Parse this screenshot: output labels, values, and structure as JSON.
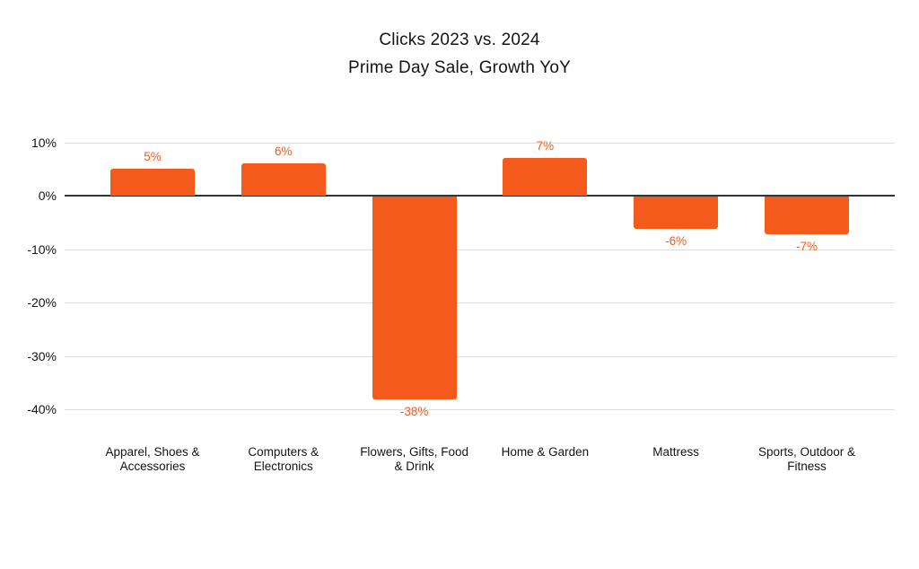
{
  "title": {
    "line1": "Clicks 2023 vs. 2024",
    "line2": "Prime Day Sale, Growth YoY"
  },
  "chart_data": {
    "type": "bar",
    "title": "Clicks 2023 vs. 2024",
    "subtitle": "Prime Day Sale, Growth YoY",
    "categories": [
      "Apparel, Shoes &\nAccessories",
      "Computers &\nElectronics",
      "Flowers, Gifts, Food\n& Drink",
      "Home & Garden",
      "Mattress",
      "Sports, Outdoor &\nFitness"
    ],
    "values": [
      5,
      6,
      -38,
      7,
      -6,
      -7
    ],
    "value_labels": [
      "5%",
      "6%",
      "-38%",
      "7%",
      "-6%",
      "-7%"
    ],
    "xlabel": "",
    "ylabel": "",
    "ylim": [
      -40,
      10
    ],
    "y_ticks": [
      10,
      0,
      -10,
      -20,
      -30,
      -40
    ],
    "y_tick_labels": [
      "10%",
      "0%",
      "-10%",
      "-20%",
      "-30%",
      "-40%"
    ],
    "grid": "on",
    "legend": "none",
    "bar_color": "#f45a1c",
    "value_label_color": "#f45a1c",
    "grid_color": "#dedede",
    "zero_line_color": "#333333",
    "text_color": "#141414"
  }
}
